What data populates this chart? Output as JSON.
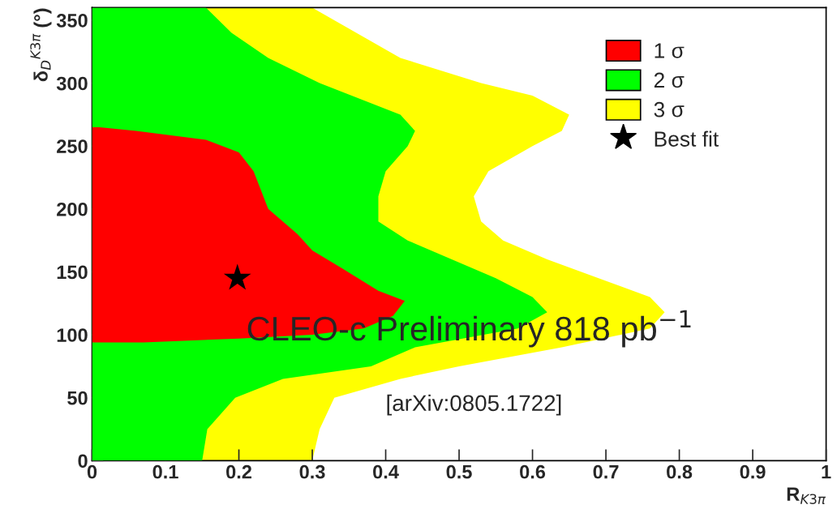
{
  "chart_data": {
    "type": "area",
    "orientation": "horizontal",
    "xlabel": "R$_{K3π}$",
    "ylabel": "δ$_{D}$$^{K3π}$ (°)",
    "xlim": [
      0,
      1
    ],
    "ylim": [
      0,
      360
    ],
    "xticks": [
      0,
      0.1,
      0.2,
      0.3,
      0.4,
      0.5,
      0.6,
      0.7,
      0.8,
      0.9,
      1
    ],
    "yticks": [
      0,
      50,
      100,
      150,
      200,
      250,
      300,
      350
    ],
    "grid": false,
    "legend": "top right",
    "series": [
      {
        "name": "1 σ",
        "color": "#ff0000",
        "x": [
          94,
          97,
          100,
          105,
          115,
          127,
          135,
          153,
          167,
          180,
          200,
          215,
          230,
          245,
          255,
          262,
          265
        ],
        "values": [
          0.07,
          0.2,
          0.3,
          0.37,
          0.41,
          0.426,
          0.39,
          0.34,
          0.3,
          0.28,
          0.24,
          0.23,
          0.22,
          0.2,
          0.155,
          0.06,
          0.01
        ]
      },
      {
        "name": "2 σ",
        "color": "#00ff00",
        "x": [
          0,
          25,
          50,
          65,
          75,
          90,
          105,
          118,
          130,
          145,
          160,
          175,
          190,
          210,
          230,
          250,
          262,
          275,
          300,
          320,
          340,
          360
        ],
        "values": [
          0.15,
          0.157,
          0.195,
          0.26,
          0.38,
          0.44,
          0.58,
          0.62,
          0.6,
          0.55,
          0.49,
          0.43,
          0.39,
          0.39,
          0.4,
          0.43,
          0.44,
          0.42,
          0.31,
          0.24,
          0.19,
          0.155
        ]
      },
      {
        "name": "3 σ",
        "color": "#ffff00",
        "x": [
          0,
          25,
          50,
          65,
          75,
          90,
          105,
          118,
          130,
          145,
          160,
          175,
          190,
          210,
          230,
          250,
          262,
          275,
          290,
          300,
          320,
          340,
          360
        ],
        "values": [
          0.3,
          0.31,
          0.33,
          0.42,
          0.5,
          0.64,
          0.76,
          0.78,
          0.76,
          0.69,
          0.62,
          0.56,
          0.53,
          0.52,
          0.54,
          0.6,
          0.64,
          0.65,
          0.6,
          0.53,
          0.42,
          0.36,
          0.3
        ]
      },
      {
        "name": "Best fit",
        "type": "scatter",
        "marker": "star",
        "color": "#000000",
        "x": [
          145
        ],
        "values": [
          0.198
        ]
      }
    ],
    "annotations": [
      "CLEO-c Preliminary 818 pb$^{−1}$",
      "[arXiv:0805.1722]"
    ]
  }
}
